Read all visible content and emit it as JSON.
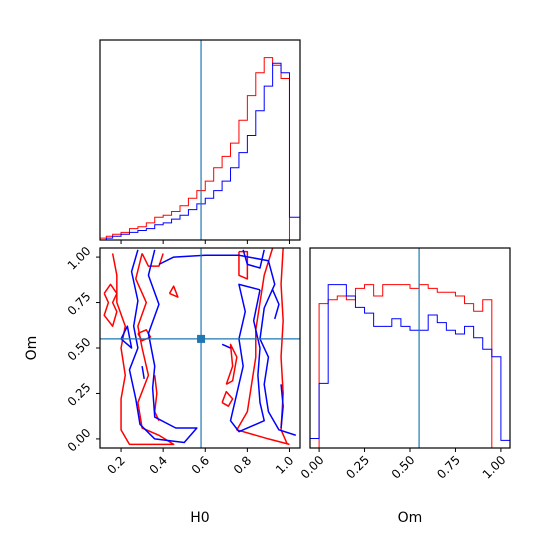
{
  "chart_data": [
    {
      "type": "area",
      "panel": "H0 marginal (top-left)",
      "xlim": [
        0.1,
        1.05
      ],
      "truth": 0.58,
      "step_edges": [
        0.1,
        0.13,
        0.16,
        0.2,
        0.24,
        0.28,
        0.32,
        0.36,
        0.4,
        0.44,
        0.48,
        0.52,
        0.56,
        0.6,
        0.64,
        0.68,
        0.72,
        0.76,
        0.8,
        0.84,
        0.88,
        0.92,
        0.96,
        1.0,
        1.05
      ],
      "series": [
        {
          "color": "#ff0000",
          "values": [
            0.01,
            0.02,
            0.03,
            0.04,
            0.06,
            0.07,
            0.09,
            0.12,
            0.13,
            0.15,
            0.18,
            0.22,
            0.26,
            0.31,
            0.38,
            0.44,
            0.51,
            0.63,
            0.76,
            0.88,
            0.96,
            0.92,
            0.85,
            0.0
          ]
        },
        {
          "color": "#0000ff",
          "values": [
            0.0,
            0.01,
            0.02,
            0.03,
            0.04,
            0.05,
            0.06,
            0.08,
            0.09,
            0.11,
            0.13,
            0.16,
            0.19,
            0.22,
            0.26,
            0.31,
            0.38,
            0.46,
            0.55,
            0.68,
            0.81,
            0.93,
            0.88,
            0.12
          ]
        }
      ]
    },
    {
      "type": "area",
      "panel": "Om marginal (bottom-right)",
      "xlabel": "Om",
      "xlim": [
        -0.05,
        1.05
      ],
      "truth": 0.55,
      "xticks": [
        "0.00",
        "0.25",
        "0.50",
        "0.75",
        "1.00"
      ],
      "step_edges": [
        -0.05,
        0.0,
        0.05,
        0.1,
        0.15,
        0.2,
        0.25,
        0.3,
        0.35,
        0.4,
        0.45,
        0.5,
        0.55,
        0.6,
        0.65,
        0.7,
        0.75,
        0.8,
        0.85,
        0.9,
        0.95,
        1.0,
        1.05
      ],
      "series": [
        {
          "color": "#ff0000",
          "values": [
            0.0,
            0.76,
            0.78,
            0.8,
            0.78,
            0.84,
            0.86,
            0.8,
            0.86,
            0.86,
            0.86,
            0.84,
            0.86,
            0.84,
            0.82,
            0.82,
            0.8,
            0.76,
            0.72,
            0.78,
            0.0,
            0.0
          ]
        },
        {
          "color": "#0000ff",
          "values": [
            0.05,
            0.34,
            0.86,
            0.86,
            0.8,
            0.74,
            0.71,
            0.64,
            0.64,
            0.68,
            0.64,
            0.62,
            0.62,
            0.7,
            0.66,
            0.62,
            0.6,
            0.64,
            0.58,
            0.52,
            0.48,
            0.04
          ]
        }
      ]
    },
    {
      "type": "scatter",
      "panel": "2D contours (bottom-left)",
      "xlabel": "H0",
      "ylabel": "Om",
      "xlim": [
        0.1,
        1.05
      ],
      "ylim": [
        -0.05,
        1.05
      ],
      "xticks": [
        "0.2",
        "0.4",
        "0.6",
        "0.8",
        "1.0"
      ],
      "yticks": [
        "0.00",
        "0.25",
        "0.50",
        "0.75",
        "1.00"
      ],
      "truth": [
        0.58,
        0.55
      ],
      "red_contours": [
        [
          [
            0.16,
            1.02
          ],
          [
            0.18,
            0.9
          ],
          [
            0.18,
            0.75
          ],
          [
            0.22,
            0.62
          ],
          [
            0.2,
            0.5
          ],
          [
            0.22,
            0.35
          ],
          [
            0.2,
            0.22
          ],
          [
            0.2,
            0.05
          ],
          [
            0.24,
            -0.03
          ],
          [
            0.45,
            -0.03
          ],
          [
            0.38,
            0.02
          ],
          [
            0.3,
            0.06
          ],
          [
            0.28,
            0.2
          ],
          [
            0.33,
            0.35
          ],
          [
            0.3,
            0.5
          ],
          [
            0.28,
            0.62
          ],
          [
            0.32,
            0.75
          ],
          [
            0.27,
            0.88
          ],
          [
            0.3,
            1.02
          ]
        ],
        [
          [
            0.92,
            1.05
          ],
          [
            0.88,
            0.9
          ],
          [
            0.86,
            0.75
          ],
          [
            0.84,
            0.6
          ],
          [
            0.84,
            0.45
          ],
          [
            0.82,
            0.3
          ],
          [
            0.8,
            0.15
          ],
          [
            0.75,
            0.05
          ],
          [
            0.9,
            0.0
          ],
          [
            1.0,
            -0.03
          ]
        ],
        [
          [
            0.97,
            1.05
          ],
          [
            0.96,
            0.85
          ],
          [
            0.97,
            0.65
          ],
          [
            0.96,
            0.45
          ],
          [
            0.97,
            0.25
          ],
          [
            0.96,
            0.05
          ],
          [
            0.99,
            -0.03
          ]
        ],
        [
          [
            0.76,
            1.03
          ],
          [
            0.76,
            0.9
          ],
          [
            0.8,
            0.88
          ],
          [
            0.8,
            1.03
          ],
          [
            0.76,
            1.03
          ]
        ],
        [
          [
            0.7,
            0.3
          ],
          [
            0.73,
            0.4
          ],
          [
            0.72,
            0.52
          ],
          [
            0.75,
            0.45
          ],
          [
            0.73,
            0.32
          ],
          [
            0.7,
            0.3
          ]
        ],
        [
          [
            0.3,
            1.02
          ],
          [
            0.33,
            0.95
          ],
          [
            0.38,
            0.95
          ],
          [
            0.4,
            1.02
          ]
        ],
        [
          [
            0.12,
            0.8
          ],
          [
            0.14,
            0.75
          ],
          [
            0.12,
            0.68
          ],
          [
            0.16,
            0.62
          ],
          [
            0.18,
            0.7
          ],
          [
            0.16,
            0.75
          ],
          [
            0.18,
            0.8
          ],
          [
            0.15,
            0.85
          ],
          [
            0.12,
            0.8
          ]
        ],
        [
          [
            0.28,
            0.58
          ],
          [
            0.3,
            0.54
          ],
          [
            0.34,
            0.56
          ],
          [
            0.32,
            0.6
          ],
          [
            0.28,
            0.58
          ]
        ],
        [
          [
            0.36,
            0.35
          ],
          [
            0.37,
            0.25
          ],
          [
            0.36,
            0.15
          ],
          [
            0.38,
            0.1
          ]
        ],
        [
          [
            0.68,
            0.2
          ],
          [
            0.71,
            0.18
          ],
          [
            0.73,
            0.22
          ],
          [
            0.7,
            0.26
          ],
          [
            0.68,
            0.2
          ]
        ],
        [
          [
            0.43,
            0.8
          ],
          [
            0.47,
            0.78
          ],
          [
            0.45,
            0.84
          ],
          [
            0.43,
            0.8
          ]
        ]
      ],
      "blue_contours": [
        [
          [
            0.28,
            1.04
          ],
          [
            0.25,
            0.92
          ],
          [
            0.28,
            0.76
          ],
          [
            0.26,
            0.62
          ],
          [
            0.28,
            0.5
          ],
          [
            0.24,
            0.38
          ],
          [
            0.27,
            0.22
          ],
          [
            0.29,
            0.08
          ],
          [
            0.36,
            0.0
          ],
          [
            0.5,
            -0.02
          ],
          [
            0.56,
            0.06
          ],
          [
            0.46,
            0.06
          ],
          [
            0.36,
            0.12
          ],
          [
            0.35,
            0.28
          ],
          [
            0.36,
            0.4
          ],
          [
            0.33,
            0.58
          ],
          [
            0.38,
            0.74
          ],
          [
            0.33,
            0.9
          ],
          [
            0.36,
            1.04
          ]
        ],
        [
          [
            0.38,
            0.96
          ],
          [
            0.45,
            1.0
          ],
          [
            0.6,
            1.01
          ],
          [
            0.76,
            1.01
          ],
          [
            0.9,
            0.98
          ],
          [
            0.93,
            0.85
          ],
          [
            0.88,
            0.72
          ],
          [
            0.86,
            0.55
          ],
          [
            0.9,
            0.45
          ],
          [
            0.88,
            0.3
          ],
          [
            0.9,
            0.15
          ],
          [
            0.95,
            0.05
          ],
          [
            1.03,
            0.02
          ]
        ],
        [
          [
            0.86,
            0.82
          ],
          [
            0.83,
            0.65
          ],
          [
            0.86,
            0.5
          ],
          [
            0.85,
            0.35
          ],
          [
            0.86,
            0.2
          ],
          [
            0.88,
            0.1
          ],
          [
            0.76,
            0.04
          ],
          [
            0.72,
            0.1
          ],
          [
            0.75,
            0.25
          ],
          [
            0.78,
            0.4
          ],
          [
            0.76,
            0.55
          ],
          [
            0.79,
            0.7
          ],
          [
            0.76,
            0.85
          ],
          [
            0.86,
            0.82
          ]
        ],
        [
          [
            0.2,
            0.55
          ],
          [
            0.23,
            0.62
          ],
          [
            0.25,
            0.5
          ],
          [
            0.2,
            0.55
          ]
        ],
        [
          [
            0.3,
            0.4
          ],
          [
            0.31,
            0.33
          ]
        ],
        [
          [
            0.78,
            1.04
          ],
          [
            0.8,
            0.96
          ],
          [
            0.86,
            0.94
          ],
          [
            0.88,
            1.04
          ]
        ],
        [
          [
            0.68,
            0.52
          ],
          [
            0.72,
            0.5
          ]
        ],
        [
          [
            0.96,
            0.3
          ],
          [
            0.97,
            0.18
          ],
          [
            0.96,
            0.06
          ]
        ],
        [
          [
            0.92,
            0.82
          ],
          [
            0.95,
            0.74
          ],
          [
            0.93,
            0.66
          ]
        ]
      ]
    }
  ]
}
